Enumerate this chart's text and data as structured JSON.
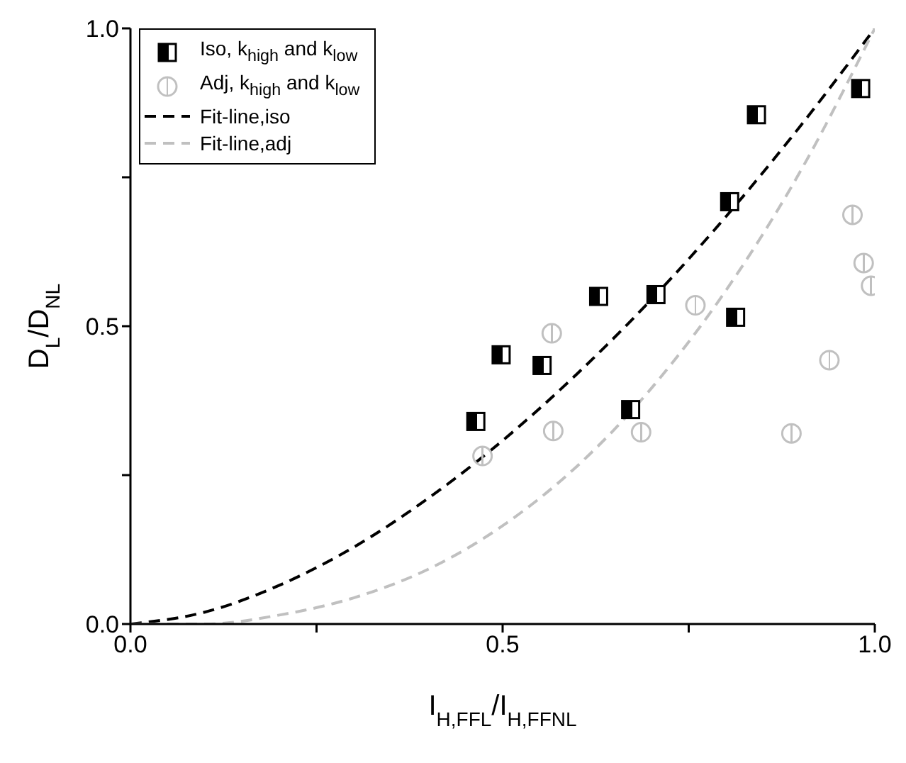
{
  "chart_data": {
    "type": "scatter",
    "xlabel": "I$_{H,FFL}$/I$_{H,FFNL}$",
    "ylabel": "D$_{L}$/D$_{NL}$",
    "xlim": [
      0,
      1
    ],
    "ylim": [
      0,
      1
    ],
    "xticks": [
      {
        "value": 0,
        "label": "0.0"
      },
      {
        "value": 0.25,
        "label": null
      },
      {
        "value": 0.5,
        "label": "0.5"
      },
      {
        "value": 0.75,
        "label": null
      },
      {
        "value": 1,
        "label": "1.0"
      }
    ],
    "yticks": [
      {
        "value": 0,
        "label": "0.0"
      },
      {
        "value": 0.25,
        "label": null
      },
      {
        "value": 0.5,
        "label": "0.5"
      },
      {
        "value": 0.75,
        "label": null
      },
      {
        "value": 1,
        "label": "1.0"
      }
    ],
    "legend": "top left",
    "series": [
      {
        "name": "Iso, k$_{high}$ and k$_{low}$",
        "marker": "square",
        "color": "#000000",
        "x": [
          0.464,
          0.498,
          0.553,
          0.629,
          0.706,
          0.672,
          0.805,
          0.813,
          0.841,
          0.981
        ],
        "values": [
          0.34,
          0.452,
          0.434,
          0.55,
          0.553,
          0.36,
          0.709,
          0.515,
          0.855,
          0.899
        ]
      },
      {
        "name": "Adj, k$_{high}$ and k$_{low}$",
        "marker": "circle",
        "color": "#c0c0c0",
        "x": [
          0.473,
          0.566,
          0.568,
          0.686,
          0.759,
          0.888,
          0.939,
          0.97,
          0.985,
          0.995
        ],
        "values": [
          0.282,
          0.488,
          0.324,
          0.322,
          0.535,
          0.32,
          0.443,
          0.687,
          0.606,
          0.568
        ]
      },
      {
        "name": "Fit-line,iso",
        "type": "line",
        "marker": "none",
        "line_style": "dashed",
        "color": "#000000",
        "x": [
          0,
          0.1,
          0.2,
          0.3,
          0.4,
          0.5,
          0.6,
          0.7,
          0.8,
          0.9,
          1
        ],
        "values": [
          0,
          0.02,
          0.065,
          0.129,
          0.211,
          0.308,
          0.42,
          0.545,
          0.684,
          0.836,
          1
        ]
      },
      {
        "name": "Fit-line,adj",
        "type": "line",
        "marker": "none",
        "line_style": "dashed",
        "color": "#c0c0c0",
        "x": [
          0,
          0.1,
          0.2,
          0.3,
          0.4,
          0.5,
          0.6,
          0.7,
          0.8,
          0.9,
          1
        ],
        "values": [
          0,
          0,
          0.015,
          0.044,
          0.092,
          0.165,
          0.265,
          0.396,
          0.56,
          0.76,
          1
        ]
      }
    ]
  }
}
